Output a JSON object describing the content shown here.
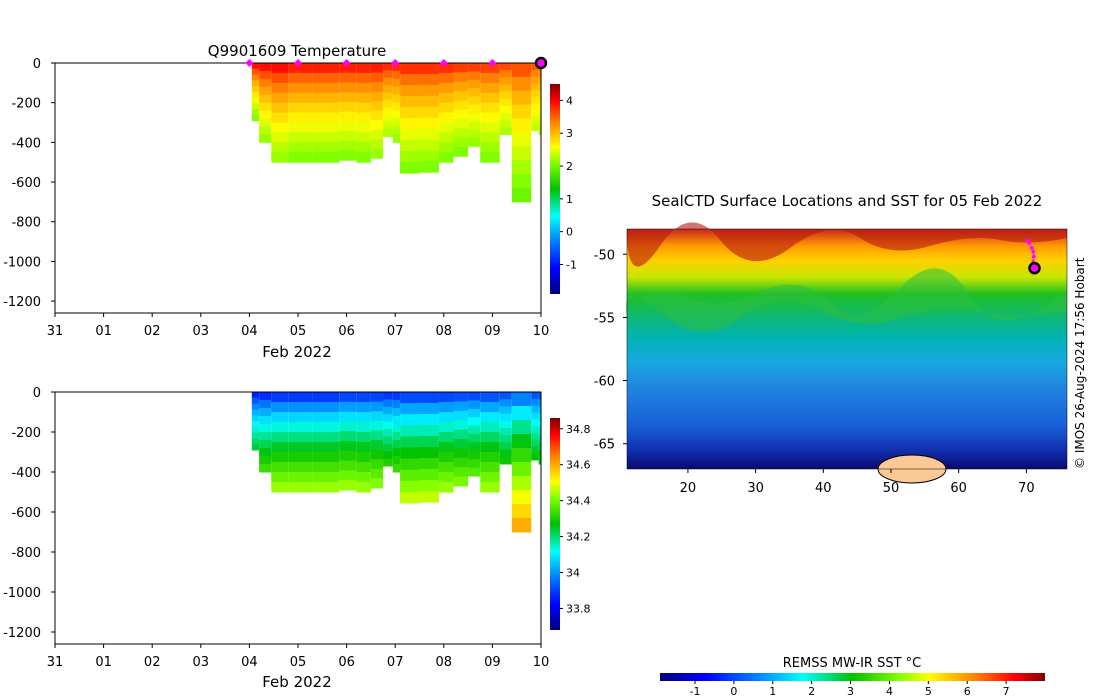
{
  "chart_data": [
    {
      "type": "heatmap",
      "title": "Q9901609  Temperature",
      "xlabel": "Feb 2022",
      "x_ticks": [
        "31",
        "01",
        "02",
        "03",
        "04",
        "05",
        "06",
        "07",
        "08",
        "09",
        "10"
      ],
      "x_range_days": [
        0,
        10
      ],
      "y_ticks": [
        0,
        -200,
        -400,
        -600,
        -800,
        -1000,
        -1200
      ],
      "ylim": [
        -1260,
        0
      ],
      "profile_markers_day": [
        4,
        5,
        6,
        7,
        8,
        9
      ],
      "current_position_day": 10,
      "colorbar": {
        "ticks": [
          4,
          3,
          2,
          1,
          0,
          -1
        ],
        "range": [
          -1.9,
          4.5
        ]
      },
      "profiles": [
        {
          "day": 4.05,
          "depth": 290,
          "surface_value": 4.3,
          "deep_value": 2.0
        },
        {
          "day": 4.2,
          "depth": 400,
          "surface_value": 4.3,
          "deep_value": 2.1
        },
        {
          "day": 4.45,
          "depth": 500,
          "surface_value": 4.3,
          "deep_value": 2.1
        },
        {
          "day": 4.8,
          "depth": 500,
          "surface_value": 4.2,
          "deep_value": 2.0
        },
        {
          "day": 5.3,
          "depth": 500,
          "surface_value": 4.2,
          "deep_value": 2.0
        },
        {
          "day": 5.85,
          "depth": 490,
          "surface_value": 4.2,
          "deep_value": 2.0
        },
        {
          "day": 6.2,
          "depth": 500,
          "surface_value": 4.2,
          "deep_value": 2.0
        },
        {
          "day": 6.5,
          "depth": 480,
          "surface_value": 4.2,
          "deep_value": 2.1
        },
        {
          "day": 6.75,
          "depth": 370,
          "surface_value": 4.1,
          "deep_value": 2.2
        },
        {
          "day": 6.95,
          "depth": 400,
          "surface_value": 4.1,
          "deep_value": 2.1
        },
        {
          "day": 7.1,
          "depth": 555,
          "surface_value": 4.1,
          "deep_value": 2.0
        },
        {
          "day": 7.5,
          "depth": 550,
          "surface_value": 4.1,
          "deep_value": 2.0
        },
        {
          "day": 7.9,
          "depth": 500,
          "surface_value": 4.1,
          "deep_value": 2.0
        },
        {
          "day": 8.2,
          "depth": 470,
          "surface_value": 4.0,
          "deep_value": 2.0
        },
        {
          "day": 8.5,
          "depth": 420,
          "surface_value": 4.0,
          "deep_value": 2.1
        },
        {
          "day": 8.75,
          "depth": 500,
          "surface_value": 4.0,
          "deep_value": 2.0
        },
        {
          "day": 9.15,
          "depth": 360,
          "surface_value": 3.9,
          "deep_value": 2.2
        },
        {
          "day": 9.4,
          "depth": 700,
          "surface_value": 3.9,
          "deep_value": 1.9
        },
        {
          "day": 9.8,
          "depth": 340,
          "surface_value": 3.8,
          "deep_value": 2.3
        },
        {
          "day": 9.95,
          "depth": 360,
          "surface_value": 3.8,
          "deep_value": 2.2
        }
      ]
    },
    {
      "type": "heatmap",
      "title": "",
      "xlabel": "Feb 2022",
      "x_ticks": [
        "31",
        "01",
        "02",
        "03",
        "04",
        "05",
        "06",
        "07",
        "08",
        "09",
        "10"
      ],
      "x_range_days": [
        0,
        10
      ],
      "y_ticks": [
        0,
        -200,
        -400,
        -600,
        -800,
        -1000,
        -1200
      ],
      "ylim": [
        -1260,
        0
      ],
      "colorbar": {
        "ticks": [
          34.8,
          34.6,
          34.4,
          34.2,
          34,
          33.8
        ],
        "range": [
          33.68,
          34.86
        ]
      },
      "profiles": [
        {
          "day": 4.05,
          "depth": 290,
          "surface_value": 33.78,
          "deep_value": 34.25
        },
        {
          "day": 4.2,
          "depth": 400,
          "surface_value": 33.78,
          "deep_value": 34.35
        },
        {
          "day": 4.45,
          "depth": 500,
          "surface_value": 33.78,
          "deep_value": 34.45
        },
        {
          "day": 4.8,
          "depth": 500,
          "surface_value": 33.78,
          "deep_value": 34.45
        },
        {
          "day": 5.3,
          "depth": 500,
          "surface_value": 33.78,
          "deep_value": 34.45
        },
        {
          "day": 5.85,
          "depth": 490,
          "surface_value": 33.8,
          "deep_value": 34.45
        },
        {
          "day": 6.2,
          "depth": 500,
          "surface_value": 33.8,
          "deep_value": 34.45
        },
        {
          "day": 6.5,
          "depth": 480,
          "surface_value": 33.8,
          "deep_value": 34.43
        },
        {
          "day": 6.75,
          "depth": 370,
          "surface_value": 33.8,
          "deep_value": 34.32
        },
        {
          "day": 6.95,
          "depth": 400,
          "surface_value": 33.8,
          "deep_value": 34.35
        },
        {
          "day": 7.1,
          "depth": 555,
          "surface_value": 33.8,
          "deep_value": 34.48
        },
        {
          "day": 7.5,
          "depth": 550,
          "surface_value": 33.8,
          "deep_value": 34.48
        },
        {
          "day": 7.9,
          "depth": 500,
          "surface_value": 33.8,
          "deep_value": 34.45
        },
        {
          "day": 8.2,
          "depth": 470,
          "surface_value": 33.82,
          "deep_value": 34.42
        },
        {
          "day": 8.5,
          "depth": 420,
          "surface_value": 33.82,
          "deep_value": 34.38
        },
        {
          "day": 8.75,
          "depth": 500,
          "surface_value": 33.82,
          "deep_value": 34.45
        },
        {
          "day": 9.15,
          "depth": 360,
          "surface_value": 33.85,
          "deep_value": 34.3
        },
        {
          "day": 9.4,
          "depth": 700,
          "surface_value": 33.85,
          "deep_value": 34.62
        },
        {
          "day": 9.8,
          "depth": 340,
          "surface_value": 33.85,
          "deep_value": 34.28
        },
        {
          "day": 9.95,
          "depth": 360,
          "surface_value": 33.85,
          "deep_value": 34.3
        }
      ]
    },
    {
      "type": "heatmap",
      "title": "SealCTD Surface Locations and SST for 05 Feb 2022",
      "x_ticks": [
        20,
        30,
        40,
        50,
        60,
        70
      ],
      "xlim": [
        11,
        76
      ],
      "y_ticks": [
        -50,
        -55,
        -60,
        -65
      ],
      "ylim": [
        -67,
        -48
      ],
      "track_lonlat": [
        [
          70.1,
          -48.9
        ],
        [
          70.4,
          -49.1
        ],
        [
          70.8,
          -49.5
        ],
        [
          71.0,
          -49.8
        ],
        [
          71.1,
          -50.2
        ],
        [
          71.0,
          -50.6
        ],
        [
          71.2,
          -51.1
        ]
      ],
      "current_position_lonlat": [
        71.2,
        -51.1
      ],
      "colorbar": {
        "label": "REMSS MW-IR SST °C",
        "ticks": [
          -1,
          0,
          1,
          2,
          3,
          4,
          5,
          6,
          7
        ],
        "range": [
          -1.9,
          8.0
        ]
      },
      "credit": "© IMOS 26-Aug-2024 17:56 Hobart"
    }
  ]
}
